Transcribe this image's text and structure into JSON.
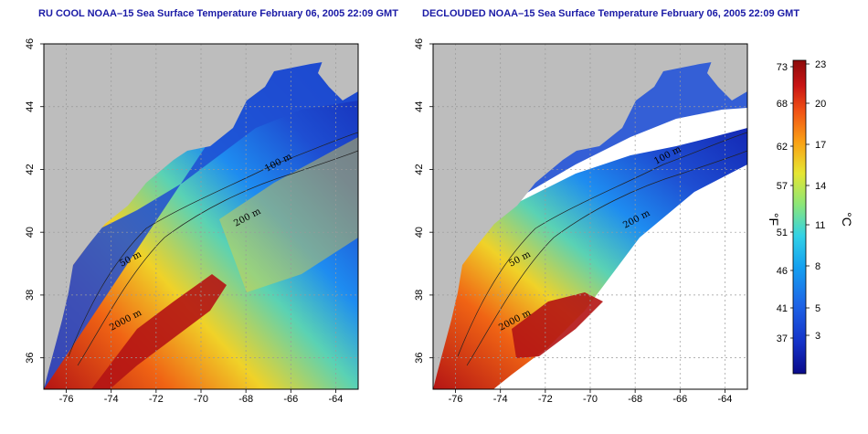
{
  "panels": [
    {
      "id": "left",
      "title": "RU COOL NOAA–15 Sea Surface Temperature February 06, 2005 22:09 GMT",
      "clouds": false
    },
    {
      "id": "right",
      "title": "DECLOUDED NOAA–15 Sea Surface Temperature February 06, 2005 22:09 GMT",
      "clouds": true
    }
  ],
  "axes": {
    "lon_ticks": [
      "-76",
      "-74",
      "-72",
      "-70",
      "-68",
      "-66",
      "-64"
    ],
    "lat_ticks": [
      "36",
      "38",
      "40",
      "42",
      "44",
      "46"
    ],
    "lon_range": [
      -77,
      -63
    ],
    "lat_range": [
      35,
      46
    ],
    "grid": "dotted"
  },
  "contour_labels": [
    "100 m",
    "200 m",
    "50 m",
    "2000 m",
    "100 m",
    "200 m",
    "50 m",
    "2000 m"
  ],
  "colorbar": {
    "f_ticks": [
      "73",
      "68",
      "62",
      "57",
      "51",
      "46",
      "41",
      "37"
    ],
    "c_ticks": [
      "23",
      "20",
      "17",
      "14",
      "11",
      "8",
      "5",
      "3"
    ],
    "f_label": "°F",
    "c_label": "°C",
    "colors": [
      "#0a0a8a",
      "#1432c8",
      "#1e64e6",
      "#14a0f0",
      "#32d2e6",
      "#8ce678",
      "#e6e632",
      "#faa014",
      "#f05014",
      "#c81414",
      "#8c0a0a"
    ]
  },
  "colors": {
    "land": "#bdbdbd",
    "title": "#1a1aa6",
    "grid": "#9a9a9a"
  }
}
